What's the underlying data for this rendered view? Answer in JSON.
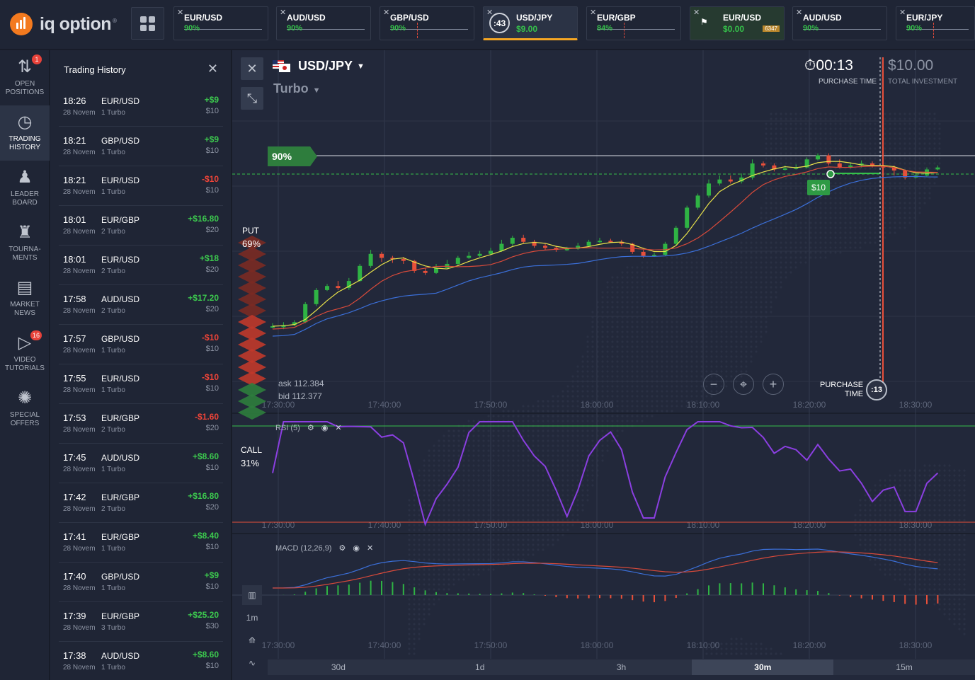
{
  "brand": {
    "name": "iq option",
    "trademark": "®"
  },
  "tabs": [
    {
      "pair": "EUR/USD",
      "pct": "90%",
      "close": "✕"
    },
    {
      "pair": "AUD/USD",
      "pct": "90%",
      "close": "✕"
    },
    {
      "pair": "GBP/USD",
      "pct": "90%",
      "close": "✕"
    },
    {
      "pair": "USD/JPY",
      "amount": "$9.00",
      "timer": ":43",
      "close": "✕"
    },
    {
      "pair": "EUR/GBP",
      "pct": "84%",
      "close": "✕"
    },
    {
      "pair": "EUR/USD",
      "pct": "$0.00",
      "mini": "6347",
      "close": "✕"
    },
    {
      "pair": "AUD/USD",
      "pct": "90%",
      "close": "✕"
    },
    {
      "pair": "EUR/JPY",
      "pct": "90%",
      "close": "✕"
    }
  ],
  "nav": [
    {
      "label1": "OPEN",
      "label2": "POSITIONS",
      "icon": "arrows-updown-icon",
      "glyph": "⇅",
      "badge": "1"
    },
    {
      "label1": "TRADING",
      "label2": "HISTORY",
      "icon": "history-clock-icon",
      "glyph": "◷"
    },
    {
      "label1": "LEADER",
      "label2": "BOARD",
      "icon": "leaderboard-icon",
      "glyph": "♟"
    },
    {
      "label1": "TOURNA-",
      "label2": "MENTS",
      "icon": "trophy-icon",
      "glyph": "♜"
    },
    {
      "label1": "MARKET",
      "label2": "NEWS",
      "icon": "newspaper-icon",
      "glyph": "▤"
    },
    {
      "label1": "VIDEO",
      "label2": "TUTORIALS",
      "icon": "video-play-icon",
      "glyph": "▷",
      "badge": "16"
    },
    {
      "label1": "SPECIAL",
      "label2": "OFFERS",
      "icon": "offers-gear-icon",
      "glyph": "✺"
    }
  ],
  "history": {
    "title": "Trading History",
    "close": "✕",
    "rows": [
      {
        "time": "18:26",
        "date": "28 Novem",
        "pair": "EUR/USD",
        "type": "1 Turbo",
        "result": "+$9",
        "invest": "$10",
        "win": true
      },
      {
        "time": "18:21",
        "date": "28 Novem",
        "pair": "GBP/USD",
        "type": "1 Turbo",
        "result": "+$9",
        "invest": "$10",
        "win": true
      },
      {
        "time": "18:21",
        "date": "28 Novem",
        "pair": "EUR/USD",
        "type": "1 Turbo",
        "result": "-$10",
        "invest": "$10",
        "win": false
      },
      {
        "time": "18:01",
        "date": "28 Novem",
        "pair": "EUR/GBP",
        "type": "2 Turbo",
        "result": "+$16.80",
        "invest": "$20",
        "win": true
      },
      {
        "time": "18:01",
        "date": "28 Novem",
        "pair": "EUR/USD",
        "type": "2 Turbo",
        "result": "+$18",
        "invest": "$20",
        "win": true
      },
      {
        "time": "17:58",
        "date": "28 Novem",
        "pair": "AUD/USD",
        "type": "2 Turbo",
        "result": "+$17.20",
        "invest": "$20",
        "win": true
      },
      {
        "time": "17:57",
        "date": "28 Novem",
        "pair": "GBP/USD",
        "type": "1 Turbo",
        "result": "-$10",
        "invest": "$10",
        "win": false
      },
      {
        "time": "17:55",
        "date": "28 Novem",
        "pair": "EUR/USD",
        "type": "1 Turbo",
        "result": "-$10",
        "invest": "$10",
        "win": false
      },
      {
        "time": "17:53",
        "date": "28 Novem",
        "pair": "EUR/GBP",
        "type": "2 Turbo",
        "result": "-$1.60",
        "invest": "$20",
        "win": false
      },
      {
        "time": "17:45",
        "date": "28 Novem",
        "pair": "AUD/USD",
        "type": "1 Turbo",
        "result": "+$8.60",
        "invest": "$10",
        "win": true
      },
      {
        "time": "17:42",
        "date": "28 Novem",
        "pair": "EUR/GBP",
        "type": "2 Turbo",
        "result": "+$16.80",
        "invest": "$20",
        "win": true
      },
      {
        "time": "17:41",
        "date": "28 Novem",
        "pair": "EUR/GBP",
        "type": "1 Turbo",
        "result": "+$8.40",
        "invest": "$10",
        "win": true
      },
      {
        "time": "17:40",
        "date": "28 Novem",
        "pair": "GBP/USD",
        "type": "1 Turbo",
        "result": "+$9",
        "invest": "$10",
        "win": true
      },
      {
        "time": "17:39",
        "date": "28 Novem",
        "pair": "EUR/GBP",
        "type": "3 Turbo",
        "result": "+$25.20",
        "invest": "$30",
        "win": true
      },
      {
        "time": "17:38",
        "date": "28 Novem",
        "pair": "AUD/USD",
        "type": "1 Turbo",
        "result": "+$8.60",
        "invest": "$10",
        "win": true
      }
    ]
  },
  "chart": {
    "asset": "USD/JPY",
    "mode": "Turbo",
    "purchase_time": "00:13",
    "purchase_time_label": "PURCHASE TIME",
    "total_investment": "$10.00",
    "total_investment_label": "TOTAL INVESTMENT",
    "payout_flag": "90%",
    "put_label": "PUT",
    "put_pct": "69%",
    "call_label": "CALL",
    "call_pct": "31%",
    "ask": "ask 112.384",
    "bid": "bid 112.377",
    "amount_tag": "$10",
    "purchase_label_1": "PURCHASE",
    "purchase_label_2": "TIME",
    "purchase_countdown": ":13",
    "x_ticks": [
      "17:30:00",
      "17:40:00",
      "17:50:00",
      "18:00:00",
      "18:10:00",
      "18:20:00",
      "18:30:00"
    ],
    "rsi_label": "RSI (5)",
    "macd_label": "MACD (12,26,9)",
    "tool_1m": "1m",
    "timeframes": [
      "30d",
      "1d",
      "3h",
      "30m",
      "15m"
    ],
    "active_timeframe": "30m",
    "colors": {
      "up": "#2fb344",
      "down": "#e8503a",
      "ma_fast": "#e9e24a",
      "ma_mid": "#d84a3a",
      "ma_slow": "#3b6fd8",
      "rsi": "#8a3fe0"
    }
  },
  "chart_data": {
    "type": "candlestick",
    "candles": [
      [
        0,
        0,
        3,
        -2
      ],
      [
        -1,
        1,
        4,
        -3
      ],
      [
        1,
        4,
        6,
        0
      ],
      [
        4,
        22,
        24,
        3
      ],
      [
        22,
        36,
        38,
        20
      ],
      [
        36,
        40,
        42,
        35
      ],
      [
        40,
        38,
        45,
        36
      ],
      [
        38,
        45,
        48,
        36
      ],
      [
        45,
        60,
        62,
        44
      ],
      [
        60,
        72,
        76,
        58
      ],
      [
        72,
        68,
        74,
        64
      ],
      [
        68,
        67,
        70,
        63
      ],
      [
        67,
        65,
        69,
        62
      ],
      [
        65,
        55,
        66,
        53
      ],
      [
        55,
        53,
        58,
        51
      ],
      [
        53,
        58,
        62,
        52
      ],
      [
        58,
        62,
        66,
        57
      ],
      [
        62,
        68,
        70,
        61
      ],
      [
        68,
        70,
        74,
        67
      ],
      [
        70,
        72,
        75,
        69
      ],
      [
        72,
        75,
        78,
        71
      ],
      [
        75,
        82,
        86,
        74
      ],
      [
        82,
        88,
        90,
        80
      ],
      [
        88,
        84,
        91,
        82
      ],
      [
        84,
        80,
        86,
        78
      ],
      [
        80,
        78,
        82,
        76
      ],
      [
        78,
        76,
        80,
        74
      ],
      [
        76,
        77,
        79,
        75
      ],
      [
        77,
        80,
        83,
        76
      ],
      [
        80,
        84,
        86,
        79
      ],
      [
        84,
        85,
        88,
        83
      ],
      [
        85,
        84,
        87,
        83
      ],
      [
        84,
        82,
        86,
        80
      ],
      [
        82,
        74,
        83,
        72
      ],
      [
        74,
        70,
        76,
        68
      ],
      [
        70,
        71,
        73,
        69
      ],
      [
        71,
        82,
        84,
        70
      ],
      [
        82,
        98,
        100,
        80
      ],
      [
        98,
        118,
        120,
        96
      ],
      [
        118,
        130,
        132,
        116
      ],
      [
        130,
        142,
        146,
        128
      ],
      [
        142,
        146,
        150,
        140
      ],
      [
        146,
        144,
        150,
        142
      ],
      [
        144,
        148,
        152,
        142
      ],
      [
        148,
        162,
        166,
        146
      ],
      [
        162,
        160,
        164,
        158
      ],
      [
        160,
        156,
        162,
        154
      ],
      [
        156,
        157,
        160,
        155
      ],
      [
        157,
        158,
        161,
        156
      ],
      [
        158,
        166,
        168,
        157
      ],
      [
        166,
        170,
        172,
        165
      ],
      [
        170,
        162,
        172,
        160
      ],
      [
        162,
        158,
        166,
        157
      ],
      [
        158,
        160,
        163,
        157
      ],
      [
        160,
        162,
        165,
        158
      ],
      [
        162,
        160,
        164,
        158
      ],
      [
        160,
        158,
        162,
        156
      ],
      [
        158,
        155,
        160,
        150
      ],
      [
        155,
        148,
        156,
        146
      ],
      [
        148,
        150,
        153,
        147
      ],
      [
        150,
        156,
        158,
        149
      ],
      [
        156,
        158,
        160,
        155
      ]
    ]
  }
}
